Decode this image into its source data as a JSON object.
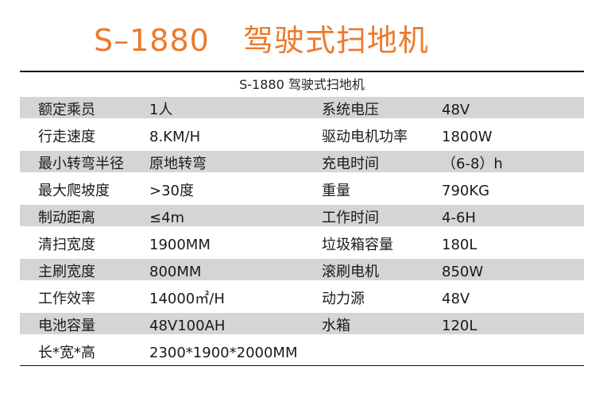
{
  "title": {
    "model": "S–1880",
    "name": "驾驶式扫地机"
  },
  "subtitle": "S-1880 驾驶式扫地机",
  "rows": [
    {
      "k1": "额定乘员",
      "v1": "1人",
      "k2": "系统电压",
      "v2": "48V"
    },
    {
      "k1": "行走速度",
      "v1": "8.KM/H",
      "k2": "驱动电机功率",
      "v2": "1800W"
    },
    {
      "k1": "最小转弯半径",
      "v1": "原地转弯",
      "k2": "充电时间",
      "v2": "（6-8）h"
    },
    {
      "k1": "最大爬坡度",
      "v1": ">30度",
      "k2": "重量",
      "v2": "790KG"
    },
    {
      "k1": "制动距离",
      "v1": "≤4m",
      "k2": "工作时间",
      "v2": "4-6H"
    },
    {
      "k1": "清扫宽度",
      "v1": "1900MM",
      "k2": "垃圾箱容量",
      "v2": "180L"
    },
    {
      "k1": "主刷宽度",
      "v1": "800MM",
      "k2": "滚刷电机",
      "v2": "850W"
    },
    {
      "k1": "工作效率",
      "v1": "14000㎡/H",
      "k2": "动力源",
      "v2": "48V"
    },
    {
      "k1": "电池容量",
      "v1": "48V100AH",
      "k2": "水箱",
      "v2": "120L"
    },
    {
      "k1": "长*宽*高",
      "v1": "2300*1900*2000MM",
      "k2": "",
      "v2": ""
    }
  ]
}
